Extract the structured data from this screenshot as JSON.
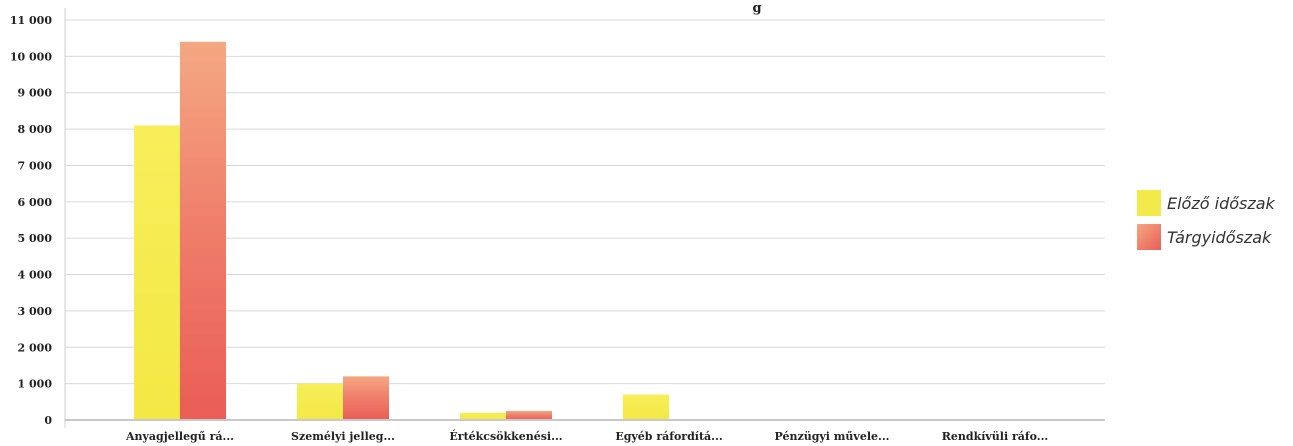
{
  "chart_data": {
    "type": "bar",
    "title": "g",
    "categories": [
      "Anyagjellegű rá...",
      "Személyi jelleg...",
      "Értékcsökkenési...",
      "Egyéb ráfordítá...",
      "Pénzügyi művele...",
      "Rendkívüli ráfo..."
    ],
    "series": [
      {
        "name": "Előző időszak",
        "color": "#f2ea4a",
        "values": [
          8100,
          1000,
          200,
          700,
          0,
          0
        ]
      },
      {
        "name": "Tárgyidőszak",
        "color": "#ec6a5e",
        "values": [
          10400,
          1200,
          250,
          0,
          0,
          0
        ]
      }
    ],
    "yticks": [
      "0",
      "1 000",
      "2 000",
      "3 000",
      "4 000",
      "5 000",
      "6 000",
      "7 000",
      "8 000",
      "9 000",
      "10 000",
      "11 000"
    ],
    "ylim": [
      0,
      11000
    ],
    "grid": true,
    "legend_position": "right"
  }
}
